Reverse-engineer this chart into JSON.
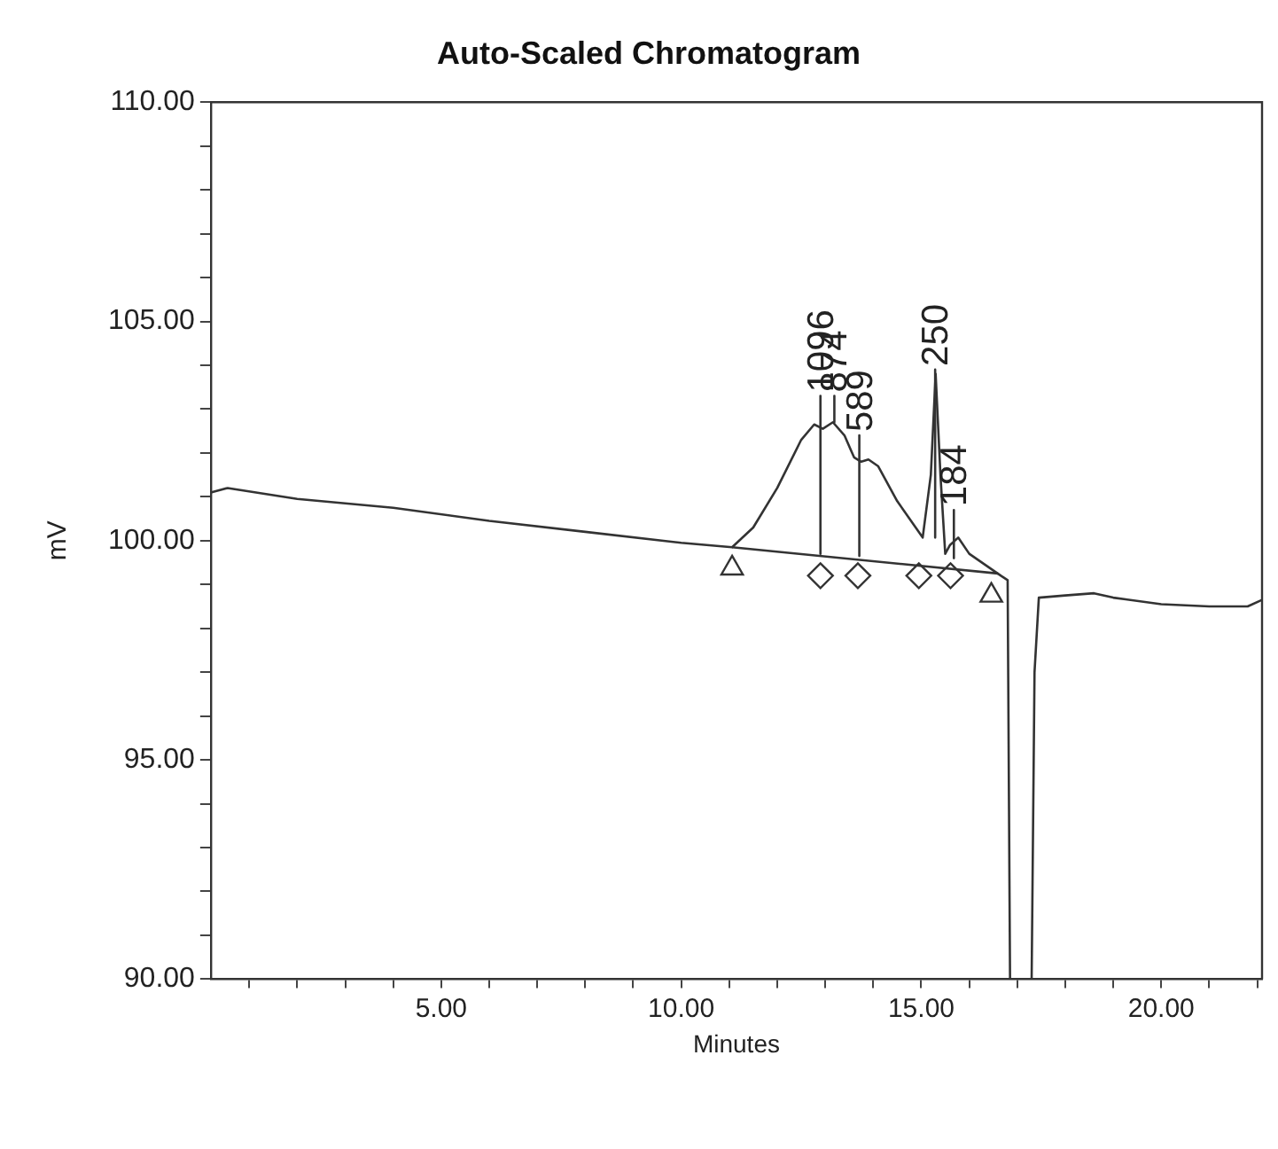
{
  "chart_data": {
    "type": "line",
    "title": "Auto-Scaled Chromatogram",
    "xlabel": "Minutes",
    "ylabel": "mV",
    "xlim": [
      0.2,
      22.1
    ],
    "xticks": [
      {
        "value": 1,
        "label": null
      },
      {
        "value": 2,
        "label": null
      },
      {
        "value": 3,
        "label": null
      },
      {
        "value": 4,
        "label": null
      },
      {
        "value": 5,
        "label": "5.00"
      },
      {
        "value": 6,
        "label": null
      },
      {
        "value": 7,
        "label": null
      },
      {
        "value": 8,
        "label": null
      },
      {
        "value": 9,
        "label": null
      },
      {
        "value": 10,
        "label": "10.00"
      },
      {
        "value": 11,
        "label": null
      },
      {
        "value": 12,
        "label": null
      },
      {
        "value": 13,
        "label": null
      },
      {
        "value": 14,
        "label": null
      },
      {
        "value": 15,
        "label": "15.00"
      },
      {
        "value": 16,
        "label": null
      },
      {
        "value": 17,
        "label": null
      },
      {
        "value": 18,
        "label": null
      },
      {
        "value": 19,
        "label": null
      },
      {
        "value": 20,
        "label": "20.00"
      },
      {
        "value": 21,
        "label": null
      },
      {
        "value": 22,
        "label": null
      }
    ],
    "ylim": [
      90,
      110
    ],
    "yticks": [
      {
        "value": 90,
        "label": "90.00"
      },
      {
        "value": 91,
        "label": null
      },
      {
        "value": 92,
        "label": null
      },
      {
        "value": 93,
        "label": null
      },
      {
        "value": 94,
        "label": null
      },
      {
        "value": 95,
        "label": "95.00"
      },
      {
        "value": 96,
        "label": null
      },
      {
        "value": 97,
        "label": null
      },
      {
        "value": 98,
        "label": null
      },
      {
        "value": 99,
        "label": null
      },
      {
        "value": 100,
        "label": "100.00"
      },
      {
        "value": 101,
        "label": null
      },
      {
        "value": 102,
        "label": null
      },
      {
        "value": 103,
        "label": null
      },
      {
        "value": 104,
        "label": null
      },
      {
        "value": 105,
        "label": "105.00"
      },
      {
        "value": 106,
        "label": null
      },
      {
        "value": 107,
        "label": null
      },
      {
        "value": 108,
        "label": null
      },
      {
        "value": 109,
        "label": null
      },
      {
        "value": 110,
        "label": "110.00"
      }
    ],
    "grid": false,
    "legend": false,
    "marker": "none",
    "line_style": "solid",
    "series": [
      {
        "type": "line",
        "color": "#333333",
        "x": [
          0.2,
          0.55,
          2,
          4,
          6,
          8,
          10,
          11.06,
          11.5,
          12,
          12.5,
          12.77,
          12.95,
          13.16,
          13.4,
          13.6,
          13.75,
          13.9,
          14.1,
          14.5,
          15.03,
          15.2,
          15.3,
          15.4,
          15.5,
          15.6,
          15.77,
          16,
          16.66,
          16.8,
          16.85,
          17.3,
          17.36,
          17.45,
          18,
          18.6,
          19,
          20,
          21,
          21.8,
          22.1
        ],
        "values": [
          101.1,
          101.2,
          100.95,
          100.75,
          100.45,
          100.2,
          99.95,
          99.85,
          100.3,
          101.2,
          102.3,
          102.65,
          102.55,
          102.7,
          102.4,
          101.9,
          101.8,
          101.85,
          101.7,
          100.9,
          100.07,
          101.5,
          103.8,
          101.5,
          99.7,
          99.9,
          100.07,
          99.7,
          99.2,
          99.1,
          90,
          90,
          97,
          98.7,
          98.75,
          98.8,
          98.7,
          98.55,
          98.5,
          98.5,
          98.65
        ]
      },
      {
        "type": "line",
        "color": "#333333",
        "x": [
          11.06,
          16.6
        ],
        "values": [
          99.85,
          99.25
        ]
      },
      {
        "type": "line",
        "color": "#333333",
        "x": [
          12.9,
          12.9
        ],
        "values": [
          103.3,
          99.7
        ]
      },
      {
        "type": "line",
        "color": "#333333",
        "x": [
          13.19,
          13.19
        ],
        "values": [
          103.3,
          102.7
        ]
      },
      {
        "type": "line",
        "color": "#333333",
        "x": [
          13.71,
          13.71
        ],
        "values": [
          102.4,
          99.65
        ]
      },
      {
        "type": "line",
        "color": "#333333",
        "x": [
          15.29,
          15.29
        ],
        "values": [
          103.9,
          100.07
        ]
      },
      {
        "type": "line",
        "color": "#333333",
        "x": [
          15.68,
          15.68
        ],
        "values": [
          100.7,
          99.6
        ]
      },
      {
        "type": "scatter",
        "marker": "triangle",
        "color": "#333333",
        "x": [
          11.06,
          16.46
        ],
        "values": [
          99.37,
          98.75
        ]
      },
      {
        "type": "scatter",
        "marker": "diamond",
        "color": "#333333",
        "x": [
          12.9,
          13.68,
          14.95,
          15.61
        ],
        "values": [
          99.2,
          99.2,
          99.2,
          99.2
        ]
      }
    ],
    "annotations": [
      {
        "text": "1096",
        "x": 12.9,
        "y": 103.3
      },
      {
        "text": "874",
        "x": 13.19,
        "y": 103.3
      },
      {
        "text": "589",
        "x": 13.71,
        "y": 102.4
      },
      {
        "text": "250",
        "x": 15.29,
        "y": 103.9
      },
      {
        "text": "184",
        "x": 15.68,
        "y": 100.7
      }
    ]
  }
}
